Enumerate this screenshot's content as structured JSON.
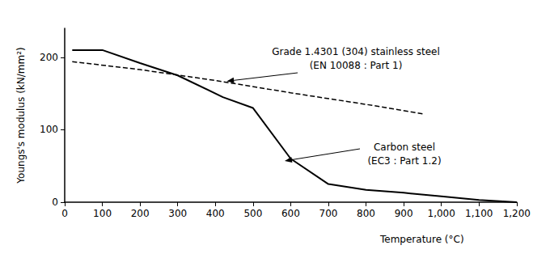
{
  "chart_data": {
    "type": "line",
    "x_label": "Temperature (°C)",
    "y_label": "Youngs's modulus (kN/mm²)",
    "xlim": [
      0,
      1200
    ],
    "xticks": [
      0,
      100,
      200,
      300,
      400,
      500,
      600,
      700,
      800,
      900,
      1000,
      1100,
      1200
    ],
    "ylim": [
      0,
      240
    ],
    "yticks": [
      0,
      100,
      200
    ],
    "grid": false,
    "series": [
      {
        "name": "Grade 1.4301 (304) stainless steel",
        "color": "#000000",
        "line_style": "dashed",
        "x": [
          20,
          200,
          400,
          600,
          800,
          950
        ],
        "values": [
          194,
          183,
          168,
          151,
          135,
          122
        ]
      },
      {
        "name": "Carbon steel",
        "color": "#000000",
        "line_style": "solid",
        "x": [
          20,
          100,
          200,
          300,
          420,
          500,
          600,
          700,
          800,
          900,
          1000,
          1100,
          1200
        ],
        "values": [
          210,
          210,
          192,
          175,
          145,
          130,
          60,
          25,
          17,
          13,
          8,
          3,
          0
        ]
      }
    ],
    "annotations": [
      {
        "text": [
          "Grade 1.4301 (304) stainless steel",
          "(EN 10088 : Part 1)"
        ],
        "x": 430,
        "y": 167
      },
      {
        "text": [
          "Carbon steel",
          "(EC3 : Part 1.2)"
        ],
        "x": 584,
        "y": 57
      }
    ]
  }
}
